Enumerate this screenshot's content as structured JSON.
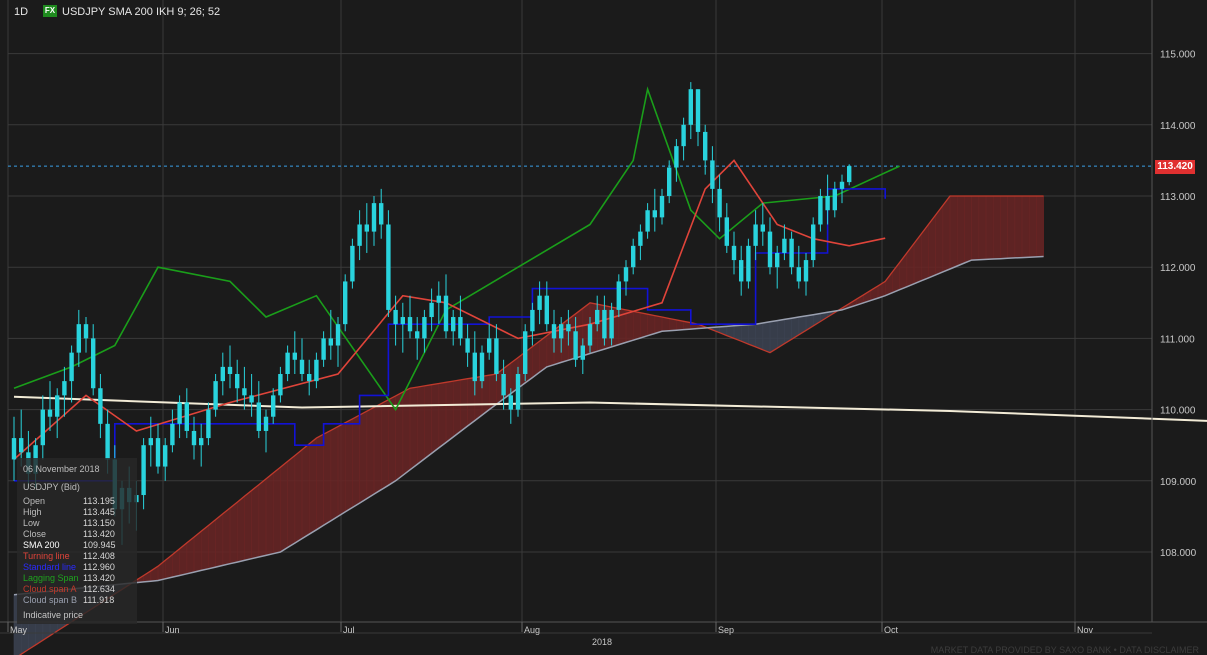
{
  "header": {
    "timeframe": "1D",
    "badge": "FX",
    "title": "USDJPY  SMA 200  IKH 9; 26; 52"
  },
  "last_price_label": "113.420",
  "info_panel": {
    "date": "06 November 2018",
    "instrument": "USDJPY (Bid)",
    "rows": [
      {
        "label": "Open",
        "value": "113.195",
        "color": "#bdbdbd"
      },
      {
        "label": "High",
        "value": "113.445",
        "color": "#bdbdbd"
      },
      {
        "label": "Low",
        "value": "113.150",
        "color": "#bdbdbd"
      },
      {
        "label": "Close",
        "value": "113.420",
        "color": "#bdbdbd"
      },
      {
        "label": "SMA 200",
        "value": "109.945",
        "color": "#ffffff"
      },
      {
        "label": "Turning line",
        "value": "112.408",
        "color": "#e0443a"
      },
      {
        "label": "Standard line",
        "value": "112.960",
        "color": "#2a2aff"
      },
      {
        "label": "Lagging Span",
        "value": "113.420",
        "color": "#1fa31f"
      },
      {
        "label": "Cloud span A",
        "value": "112.634",
        "color": "#c0392b"
      },
      {
        "label": "Cloud span B",
        "value": "111.918",
        "color": "#9aa0b0"
      }
    ],
    "footer": "Indicative price"
  },
  "credit": "MARKET DATA PROVIDED BY SAXO BANK • DATA DISCLAIMER",
  "colors": {
    "bull": "#29d3dd",
    "bear": "#29d3dd",
    "sma": "#f3ecd7",
    "turning": "#e0443a",
    "standard": "#1212d6",
    "lagging": "#1a9e1a",
    "spanA": "#c0392b",
    "spanB": "#9aa0b0",
    "cloud_bear": "#6a2525",
    "cloud_bull": "#3c4352"
  },
  "chart_data": {
    "type": "candlestick",
    "y_ticks": [
      "108.000",
      "109.000",
      "110.000",
      "111.000",
      "112.000",
      "113.000",
      "114.000",
      "115.000"
    ],
    "ylim": [
      107.0,
      115.5
    ],
    "x_months": [
      "May",
      "Jun",
      "Jul",
      "Aug",
      "Sep",
      "Oct",
      "Nov"
    ],
    "x_year": "2018",
    "candles": [
      [
        109.3,
        109.9,
        109.0,
        109.6
      ],
      [
        109.6,
        110.0,
        109.2,
        109.4
      ],
      [
        109.4,
        109.7,
        108.9,
        109.1
      ],
      [
        109.1,
        109.6,
        108.9,
        109.5
      ],
      [
        109.5,
        110.2,
        109.3,
        110.0
      ],
      [
        110.0,
        110.4,
        109.7,
        109.9
      ],
      [
        109.9,
        110.3,
        109.6,
        110.2
      ],
      [
        110.2,
        110.6,
        109.9,
        110.4
      ],
      [
        110.4,
        110.9,
        110.1,
        110.8
      ],
      [
        110.8,
        111.4,
        110.6,
        111.2
      ],
      [
        111.2,
        111.3,
        110.8,
        111.0
      ],
      [
        111.0,
        111.2,
        110.2,
        110.3
      ],
      [
        110.3,
        110.5,
        109.6,
        109.8
      ],
      [
        109.8,
        110.0,
        109.1,
        109.3
      ],
      [
        109.3,
        109.5,
        108.5,
        108.6
      ],
      [
        108.6,
        109.0,
        108.1,
        108.9
      ],
      [
        108.9,
        109.2,
        108.4,
        108.7
      ],
      [
        108.7,
        109.0,
        108.3,
        108.8
      ],
      [
        108.8,
        109.6,
        108.6,
        109.5
      ],
      [
        109.5,
        109.9,
        109.2,
        109.6
      ],
      [
        109.6,
        109.8,
        109.1,
        109.2
      ],
      [
        109.2,
        109.6,
        109.0,
        109.5
      ],
      [
        109.5,
        110.0,
        109.4,
        109.8
      ],
      [
        109.8,
        110.2,
        109.6,
        110.1
      ],
      [
        110.1,
        110.3,
        109.6,
        109.7
      ],
      [
        109.7,
        109.9,
        109.3,
        109.5
      ],
      [
        109.5,
        109.8,
        109.2,
        109.6
      ],
      [
        109.6,
        110.1,
        109.5,
        110.0
      ],
      [
        110.0,
        110.5,
        109.9,
        110.4
      ],
      [
        110.4,
        110.8,
        110.2,
        110.6
      ],
      [
        110.6,
        110.9,
        110.3,
        110.5
      ],
      [
        110.5,
        110.7,
        110.1,
        110.3
      ],
      [
        110.3,
        110.6,
        110.0,
        110.2
      ],
      [
        110.2,
        110.5,
        109.9,
        110.1
      ],
      [
        110.1,
        110.4,
        109.6,
        109.7
      ],
      [
        109.7,
        110.0,
        109.4,
        109.9
      ],
      [
        109.9,
        110.3,
        109.8,
        110.2
      ],
      [
        110.2,
        110.6,
        110.1,
        110.5
      ],
      [
        110.5,
        110.9,
        110.4,
        110.8
      ],
      [
        110.8,
        111.1,
        110.5,
        110.7
      ],
      [
        110.7,
        111.0,
        110.4,
        110.5
      ],
      [
        110.5,
        110.7,
        110.2,
        110.4
      ],
      [
        110.4,
        110.8,
        110.3,
        110.7
      ],
      [
        110.7,
        111.1,
        110.6,
        111.0
      ],
      [
        111.0,
        111.4,
        110.7,
        110.9
      ],
      [
        110.9,
        111.3,
        110.6,
        111.2
      ],
      [
        111.2,
        111.9,
        111.1,
        111.8
      ],
      [
        111.8,
        112.4,
        111.7,
        112.3
      ],
      [
        112.3,
        112.8,
        112.1,
        112.6
      ],
      [
        112.6,
        112.9,
        112.2,
        112.5
      ],
      [
        112.5,
        113.0,
        112.3,
        112.9
      ],
      [
        112.9,
        113.1,
        112.4,
        112.6
      ],
      [
        112.6,
        112.8,
        111.3,
        111.4
      ],
      [
        111.4,
        111.6,
        110.9,
        111.2
      ],
      [
        111.2,
        111.5,
        110.8,
        111.3
      ],
      [
        111.3,
        111.6,
        111.0,
        111.1
      ],
      [
        111.1,
        111.3,
        110.7,
        111.0
      ],
      [
        111.0,
        111.4,
        110.8,
        111.3
      ],
      [
        111.3,
        111.7,
        111.1,
        111.5
      ],
      [
        111.5,
        111.8,
        111.2,
        111.6
      ],
      [
        111.6,
        111.9,
        111.0,
        111.1
      ],
      [
        111.1,
        111.4,
        110.9,
        111.3
      ],
      [
        111.3,
        111.6,
        110.9,
        111.0
      ],
      [
        111.0,
        111.2,
        110.6,
        110.8
      ],
      [
        110.8,
        111.1,
        110.2,
        110.4
      ],
      [
        110.4,
        110.9,
        110.3,
        110.8
      ],
      [
        110.8,
        111.2,
        110.7,
        111.0
      ],
      [
        111.0,
        111.2,
        110.4,
        110.5
      ],
      [
        110.5,
        110.7,
        110.0,
        110.2
      ],
      [
        110.2,
        110.3,
        109.8,
        110.0
      ],
      [
        110.0,
        110.6,
        109.9,
        110.5
      ],
      [
        110.5,
        111.2,
        110.4,
        111.1
      ],
      [
        111.1,
        111.5,
        110.9,
        111.4
      ],
      [
        111.4,
        111.8,
        111.2,
        111.6
      ],
      [
        111.6,
        111.8,
        111.1,
        111.2
      ],
      [
        111.2,
        111.4,
        110.8,
        111.0
      ],
      [
        111.0,
        111.3,
        110.8,
        111.2
      ],
      [
        111.2,
        111.4,
        110.9,
        111.1
      ],
      [
        111.1,
        111.3,
        110.6,
        110.7
      ],
      [
        110.7,
        111.0,
        110.5,
        110.9
      ],
      [
        110.9,
        111.3,
        110.8,
        111.2
      ],
      [
        111.2,
        111.6,
        111.1,
        111.4
      ],
      [
        111.4,
        111.6,
        110.9,
        111.0
      ],
      [
        111.0,
        111.5,
        110.9,
        111.4
      ],
      [
        111.4,
        111.9,
        111.3,
        111.8
      ],
      [
        111.8,
        112.1,
        111.6,
        112.0
      ],
      [
        112.0,
        112.4,
        111.9,
        112.3
      ],
      [
        112.3,
        112.6,
        112.1,
        112.5
      ],
      [
        112.5,
        112.9,
        112.4,
        112.8
      ],
      [
        112.8,
        113.1,
        112.5,
        112.7
      ],
      [
        112.7,
        113.1,
        112.6,
        113.0
      ],
      [
        113.0,
        113.5,
        112.9,
        113.4
      ],
      [
        113.4,
        113.8,
        113.2,
        113.7
      ],
      [
        113.7,
        114.1,
        113.5,
        114.0
      ],
      [
        114.0,
        114.6,
        113.8,
        114.5
      ],
      [
        114.5,
        114.5,
        113.7,
        113.9
      ],
      [
        113.9,
        114.0,
        113.3,
        113.5
      ],
      [
        113.5,
        113.7,
        112.9,
        113.1
      ],
      [
        113.1,
        113.3,
        112.5,
        112.7
      ],
      [
        112.7,
        112.9,
        112.2,
        112.3
      ],
      [
        112.3,
        112.5,
        111.9,
        112.1
      ],
      [
        112.1,
        112.3,
        111.6,
        111.8
      ],
      [
        111.8,
        112.4,
        111.7,
        112.3
      ],
      [
        112.3,
        112.8,
        112.1,
        112.6
      ],
      [
        112.6,
        112.9,
        112.3,
        112.5
      ],
      [
        112.5,
        112.7,
        111.9,
        112.0
      ],
      [
        112.0,
        112.3,
        111.7,
        112.2
      ],
      [
        112.2,
        112.6,
        112.1,
        112.4
      ],
      [
        112.4,
        112.5,
        111.9,
        112.0
      ],
      [
        112.0,
        112.3,
        111.7,
        111.8
      ],
      [
        111.8,
        112.2,
        111.6,
        112.1
      ],
      [
        112.1,
        112.7,
        112.0,
        112.6
      ],
      [
        112.6,
        113.1,
        112.5,
        113.0
      ],
      [
        113.0,
        113.3,
        112.6,
        112.8
      ],
      [
        112.8,
        113.2,
        112.7,
        113.1
      ],
      [
        113.1,
        113.3,
        112.9,
        113.2
      ],
      [
        113.195,
        113.445,
        113.15,
        113.42
      ]
    ],
    "sma": [
      [
        0,
        110.18
      ],
      [
        40,
        110.03
      ],
      [
        80,
        110.1
      ],
      [
        130,
        109.98
      ],
      [
        182,
        109.78
      ],
      [
        210,
        109.78
      ],
      [
        240,
        109.8
      ],
      [
        260,
        109.87
      ],
      [
        275,
        109.94
      ]
    ],
    "turning": [
      [
        0,
        109.3
      ],
      [
        10,
        110.2
      ],
      [
        17,
        109.7
      ],
      [
        30,
        110.1
      ],
      [
        45,
        110.5
      ],
      [
        54,
        111.6
      ],
      [
        60,
        111.5
      ],
      [
        70,
        111.0
      ],
      [
        80,
        111.2
      ],
      [
        90,
        111.5
      ],
      [
        96,
        113.1
      ],
      [
        100,
        113.5
      ],
      [
        106,
        112.6
      ],
      [
        111,
        112.4
      ],
      [
        116,
        112.3
      ],
      [
        121,
        112.408
      ]
    ],
    "standard": [
      [
        0,
        109.0
      ],
      [
        14,
        109.8
      ],
      [
        34,
        109.8
      ],
      [
        39,
        109.5
      ],
      [
        43,
        109.8
      ],
      [
        48,
        110.2
      ],
      [
        52,
        111.2
      ],
      [
        66,
        111.3
      ],
      [
        72,
        111.7
      ],
      [
        80,
        111.7
      ],
      [
        88,
        111.4
      ],
      [
        94,
        111.2
      ],
      [
        103,
        112.2
      ],
      [
        113,
        113.1
      ],
      [
        121,
        112.96
      ]
    ],
    "lagging": [
      [
        0,
        110.3
      ],
      [
        8,
        110.6
      ],
      [
        14,
        110.9
      ],
      [
        20,
        112.0
      ],
      [
        30,
        111.8
      ],
      [
        35,
        111.3
      ],
      [
        42,
        111.6
      ],
      [
        53,
        110.0
      ],
      [
        60,
        111.4
      ],
      [
        70,
        112.0
      ],
      [
        80,
        112.6
      ],
      [
        86,
        113.5
      ],
      [
        88,
        114.5
      ],
      [
        94,
        112.8
      ],
      [
        98,
        112.4
      ],
      [
        104,
        112.9
      ],
      [
        114,
        113.0
      ],
      [
        123,
        113.42
      ]
    ],
    "spanA": [
      [
        0,
        106.5
      ],
      [
        20,
        107.8
      ],
      [
        31,
        108.7
      ],
      [
        42,
        109.6
      ],
      [
        55,
        110.3
      ],
      [
        67,
        110.5
      ],
      [
        80,
        111.5
      ],
      [
        95,
        111.2
      ],
      [
        105,
        110.8
      ],
      [
        121,
        111.8
      ],
      [
        130,
        113.0
      ],
      [
        143,
        113.0
      ]
    ],
    "spanB": [
      [
        0,
        107.4
      ],
      [
        20,
        107.6
      ],
      [
        37,
        108.0
      ],
      [
        53,
        109.0
      ],
      [
        66,
        110.0
      ],
      [
        74,
        110.6
      ],
      [
        90,
        111.1
      ],
      [
        103,
        111.2
      ],
      [
        115,
        111.4
      ],
      [
        121,
        111.6
      ],
      [
        133,
        112.1
      ],
      [
        143,
        112.15
      ]
    ],
    "grid": true
  }
}
